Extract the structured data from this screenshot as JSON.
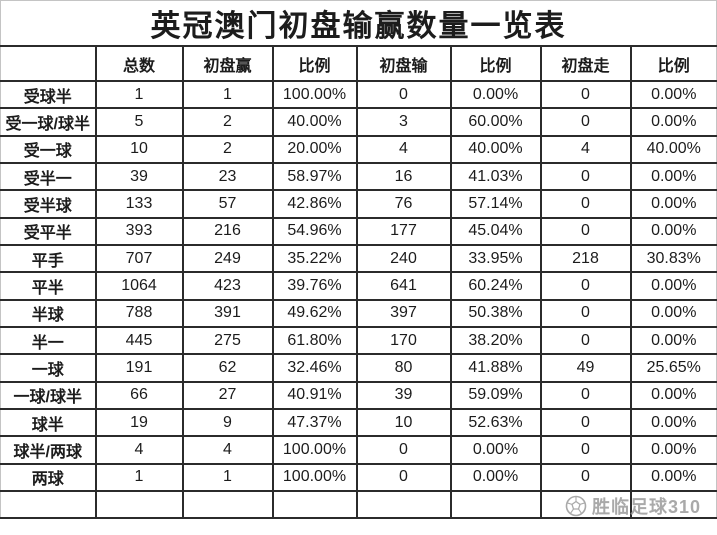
{
  "title": "英冠澳门初盘输赢数量一览表",
  "colors": {
    "highlight_red": "#ff0000",
    "text": "#1c1c1c",
    "grid_line": "#2b2b2b",
    "watermark_gray": "#9b9b9b"
  },
  "table": {
    "headers": [
      "",
      "总数",
      "初盘赢",
      "比例",
      "初盘输",
      "比例",
      "初盘走",
      "比例"
    ],
    "rows": [
      {
        "label": "受球半",
        "cells": [
          "1",
          "1",
          "100.00%",
          "0",
          "0.00%",
          "0",
          "0.00%"
        ],
        "red_cols": []
      },
      {
        "label": "受一球/球半",
        "cells": [
          "5",
          "2",
          "40.00%",
          "3",
          "60.00%",
          "0",
          "0.00%"
        ],
        "red_cols": [
          4
        ]
      },
      {
        "label": "受一球",
        "cells": [
          "10",
          "2",
          "20.00%",
          "4",
          "40.00%",
          "4",
          "40.00%"
        ],
        "red_cols": []
      },
      {
        "label": "受半一",
        "cells": [
          "39",
          "23",
          "58.97%",
          "16",
          "41.03%",
          "0",
          "0.00%"
        ],
        "red_cols": [
          2
        ]
      },
      {
        "label": "受半球",
        "cells": [
          "133",
          "57",
          "42.86%",
          "76",
          "57.14%",
          "0",
          "0.00%"
        ],
        "red_cols": [
          4
        ]
      },
      {
        "label": "受平半",
        "cells": [
          "393",
          "216",
          "54.96%",
          "177",
          "45.04%",
          "0",
          "0.00%"
        ],
        "red_cols": []
      },
      {
        "label": "平手",
        "cells": [
          "707",
          "249",
          "35.22%",
          "240",
          "33.95%",
          "218",
          "30.83%"
        ],
        "red_cols": []
      },
      {
        "label": "平半",
        "cells": [
          "1064",
          "423",
          "39.76%",
          "641",
          "60.24%",
          "0",
          "0.00%"
        ],
        "red_cols": [
          4
        ]
      },
      {
        "label": "半球",
        "cells": [
          "788",
          "391",
          "49.62%",
          "397",
          "50.38%",
          "0",
          "0.00%"
        ],
        "red_cols": []
      },
      {
        "label": "半一",
        "cells": [
          "445",
          "275",
          "61.80%",
          "170",
          "38.20%",
          "0",
          "0.00%"
        ],
        "red_cols": [
          2
        ]
      },
      {
        "label": "一球",
        "cells": [
          "191",
          "62",
          "32.46%",
          "80",
          "41.88%",
          "49",
          "25.65%"
        ],
        "red_cols": []
      },
      {
        "label": "一球/球半",
        "cells": [
          "66",
          "27",
          "40.91%",
          "39",
          "59.09%",
          "0",
          "0.00%"
        ],
        "red_cols": [
          4
        ]
      },
      {
        "label": "球半",
        "cells": [
          "19",
          "9",
          "47.37%",
          "10",
          "52.63%",
          "0",
          "0.00%"
        ],
        "red_cols": []
      },
      {
        "label": "球半/两球",
        "cells": [
          "4",
          "4",
          "100.00%",
          "0",
          "0.00%",
          "0",
          "0.00%"
        ],
        "red_cols": [
          2
        ]
      },
      {
        "label": "两球",
        "cells": [
          "1",
          "1",
          "100.00%",
          "0",
          "0.00%",
          "0",
          "0.00%"
        ],
        "red_cols": [
          2
        ]
      },
      {
        "label": "",
        "cells": [
          "",
          "",
          "",
          "",
          "",
          "",
          ""
        ],
        "red_cols": []
      }
    ]
  },
  "watermark": {
    "text": "胜临足球310",
    "icon": "soccer-ball-icon"
  }
}
